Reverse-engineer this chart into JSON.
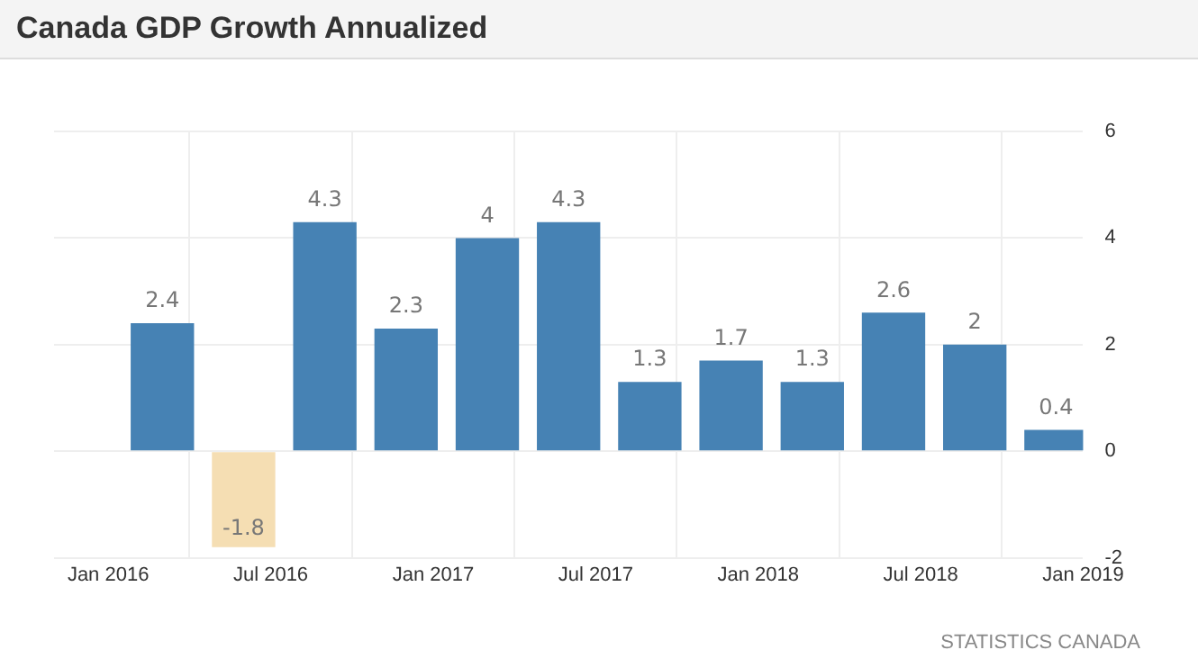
{
  "chart_data": {
    "type": "bar",
    "title": "Canada GDP Growth Annualized",
    "x": [
      "2016-03",
      "2016-06",
      "2016-09",
      "2016-12",
      "2017-03",
      "2017-06",
      "2017-09",
      "2017-12",
      "2018-03",
      "2018-06",
      "2018-09",
      "2018-12"
    ],
    "values": [
      2.4,
      -1.8,
      4.3,
      2.3,
      4,
      4.3,
      1.3,
      1.7,
      1.3,
      2.6,
      2,
      0.4
    ],
    "colors": [
      "#4682b4",
      "#f5deb3",
      "#4682b4",
      "#4682b4",
      "#4682b4",
      "#4682b4",
      "#4682b4",
      "#4682b4",
      "#4682b4",
      "#4682b4",
      "#4682b4",
      "#4682b4"
    ],
    "data_labels": true,
    "xlim": [
      "2015-11",
      "2019-01"
    ],
    "xticks": [
      {
        "value": "2016-01",
        "label": "Jan 2016"
      },
      {
        "value": "2016-07",
        "label": "Jul 2016"
      },
      {
        "value": "2017-01",
        "label": "Jan 2017"
      },
      {
        "value": "2017-07",
        "label": "Jul 2017"
      },
      {
        "value": "2018-01",
        "label": "Jan 2018"
      },
      {
        "value": "2018-07",
        "label": "Jul 2018"
      },
      {
        "value": "2019-01",
        "label": "Jan 2019"
      }
    ],
    "ylim": [
      -2,
      6
    ],
    "yticks": [
      -2,
      0,
      2,
      4,
      6
    ],
    "grid": true,
    "annotations": [
      "STATISTICS CANADA"
    ]
  }
}
